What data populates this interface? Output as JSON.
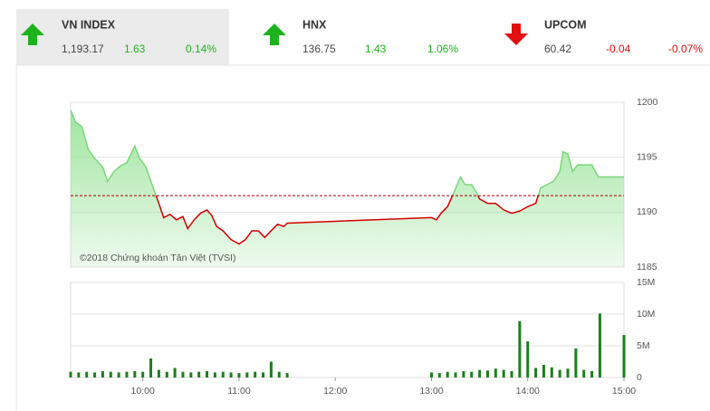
{
  "indices": [
    {
      "name": "VN INDEX",
      "value": "1,193.17",
      "change": "1.63",
      "percent": "0.14%"
    },
    {
      "name": "HNX",
      "value": "136.75",
      "change": "1.43",
      "percent": "1.06%"
    },
    {
      "name": "UPCOM",
      "value": "60.42",
      "change": "-0.04",
      "percent": "-0.07%"
    }
  ],
  "chart_data": [
    {
      "type": "area",
      "annotation": "©2018 Chứng khoán Tân Việt (TVSI)",
      "x": [
        "09:15",
        "09:18",
        "09:22",
        "09:26",
        "09:30",
        "09:35",
        "09:38",
        "09:42",
        "09:46",
        "09:50",
        "09:55",
        "09:58",
        "10:02",
        "10:06",
        "10:10",
        "10:13",
        "10:17",
        "10:21",
        "10:25",
        "10:28",
        "10:32",
        "10:36",
        "10:40",
        "10:43",
        "10:46",
        "10:50",
        "10:55",
        "11:00",
        "11:04",
        "11:08",
        "11:12",
        "11:16",
        "11:20",
        "11:24",
        "11:28",
        "11:30",
        "13:00",
        "13:03",
        "13:06",
        "13:10",
        "13:14",
        "13:18",
        "13:21",
        "13:25",
        "13:28",
        "13:30",
        "13:35",
        "13:40",
        "13:45",
        "13:50",
        "13:55",
        "14:00",
        "14:05",
        "14:08",
        "14:12",
        "14:16",
        "14:20",
        "14:22",
        "14:25",
        "14:28",
        "14:31",
        "14:35",
        "14:40",
        "14:44",
        "15:00"
      ],
      "values": [
        1199.3,
        1198.2,
        1197.8,
        1195.7,
        1194.9,
        1194.1,
        1192.8,
        1193.7,
        1194.2,
        1194.5,
        1196.0,
        1194.9,
        1194.1,
        1192.4,
        1190.8,
        1189.5,
        1189.8,
        1189.3,
        1189.6,
        1188.5,
        1189.3,
        1189.9,
        1190.2,
        1189.7,
        1188.7,
        1188.3,
        1187.5,
        1187.1,
        1187.5,
        1188.3,
        1188.3,
        1187.7,
        1188.3,
        1188.9,
        1188.7,
        1189.0,
        1189.5,
        1189.3,
        1189.9,
        1190.5,
        1191.8,
        1193.2,
        1192.5,
        1192.5,
        1191.8,
        1191.2,
        1190.8,
        1190.8,
        1190.2,
        1189.9,
        1190.1,
        1190.5,
        1190.8,
        1192.2,
        1192.5,
        1192.8,
        1193.7,
        1195.5,
        1195.3,
        1193.7,
        1194.3,
        1194.3,
        1194.3,
        1193.2,
        1193.2
      ],
      "reference": 1191.5,
      "up_color": "#7bd67b",
      "down_color": "#d40000",
      "fill_color": "#8ee08e",
      "xlim": [
        "09:15",
        "15:00"
      ],
      "ylim": [
        1185,
        1200
      ],
      "yticks": [
        1185,
        1190,
        1195,
        1200
      ],
      "grid": true
    },
    {
      "type": "bar",
      "color": "#1e7d1e",
      "x": [
        "09:15",
        "09:20",
        "09:25",
        "09:30",
        "09:35",
        "09:40",
        "09:45",
        "09:50",
        "09:55",
        "10:00",
        "10:05",
        "10:10",
        "10:15",
        "10:20",
        "10:25",
        "10:30",
        "10:35",
        "10:40",
        "10:45",
        "10:50",
        "10:55",
        "11:00",
        "11:05",
        "11:10",
        "11:15",
        "11:20",
        "11:25",
        "11:30",
        "13:00",
        "13:05",
        "13:10",
        "13:15",
        "13:20",
        "13:25",
        "13:30",
        "13:35",
        "13:40",
        "13:45",
        "13:50",
        "13:55",
        "14:00",
        "14:05",
        "14:10",
        "14:15",
        "14:20",
        "14:25",
        "14:30",
        "14:35",
        "14:40",
        "14:45",
        "15:00"
      ],
      "values": [
        900000,
        800000,
        900000,
        800000,
        1000000,
        900000,
        800000,
        900000,
        1000000,
        900000,
        3000000,
        1200000,
        900000,
        1500000,
        900000,
        800000,
        900000,
        1000000,
        800000,
        900000,
        800000,
        700000,
        800000,
        900000,
        800000,
        2500000,
        900000,
        700000,
        800000,
        700000,
        900000,
        800000,
        1000000,
        900000,
        1200000,
        1100000,
        1400000,
        1200000,
        1000000,
        8900000,
        5700000,
        1500000,
        2000000,
        1600000,
        1200000,
        1400000,
        4600000,
        1200000,
        1000000,
        10100000,
        6700000
      ],
      "xlim": [
        "09:15",
        "15:00"
      ],
      "ylim": [
        0,
        15000000
      ],
      "yticks": [
        0,
        {
          "value": 5000000,
          "label": "5M"
        },
        {
          "value": 10000000,
          "label": "10M"
        },
        {
          "value": 15000000,
          "label": "15M"
        }
      ],
      "xticks": [
        "10:00",
        "11:00",
        "12:00",
        "13:00",
        "14:00",
        "15:00"
      ],
      "grid": true
    }
  ]
}
